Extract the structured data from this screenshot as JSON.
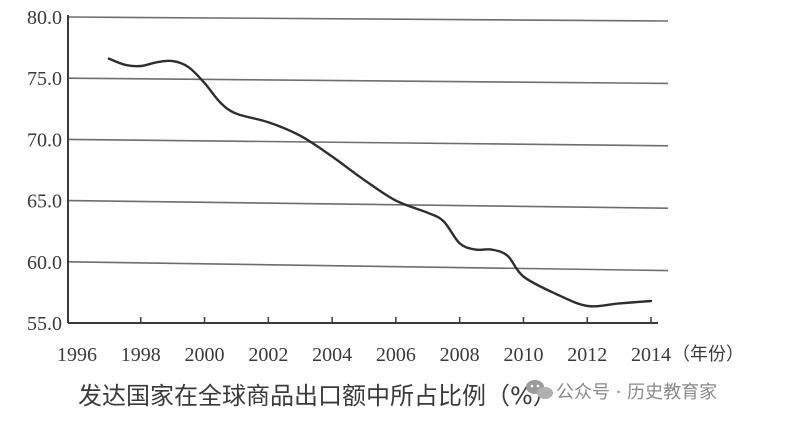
{
  "chart_data": {
    "type": "line",
    "title": "发达国家在全球商品出口额中所占比例（%）",
    "x_unit_label": "（年份）",
    "xlabel": "",
    "ylabel": "",
    "x_ticks": [
      "1996",
      "1998",
      "2000",
      "2002",
      "2004",
      "2006",
      "2008",
      "2010",
      "2012",
      "2014"
    ],
    "y_ticks": [
      "55.0",
      "60.0",
      "65.0",
      "70.0",
      "75.0",
      "80.0"
    ],
    "xlim": [
      1996,
      2014
    ],
    "ylim": [
      55,
      80
    ],
    "grid": true,
    "legend": "none",
    "series": [
      {
        "x": [
          1997,
          1997.5,
          1998,
          1998.5,
          1999,
          1999.5,
          2000,
          2000.5,
          2001,
          2002,
          2003,
          2004,
          2005,
          2006,
          2007,
          2007.5,
          2008,
          2008.5,
          2009,
          2009.5,
          2010,
          2011,
          2012,
          2013,
          2014
        ],
        "values": [
          76.6,
          76.1,
          76.0,
          76.3,
          76.4,
          75.9,
          74.6,
          73.0,
          72.1,
          71.4,
          70.3,
          68.6,
          66.7,
          65.0,
          64.0,
          63.3,
          61.5,
          61.0,
          61.0,
          60.5,
          58.8,
          57.4,
          56.4,
          56.6,
          56.8
        ]
      }
    ]
  },
  "watermark": "公众号 · 历史教育家",
  "colors": {
    "line": "#2e2e2e",
    "grid": "#6e6e6e",
    "axis": "#3a3a3a",
    "text": "#3a3a3a"
  }
}
